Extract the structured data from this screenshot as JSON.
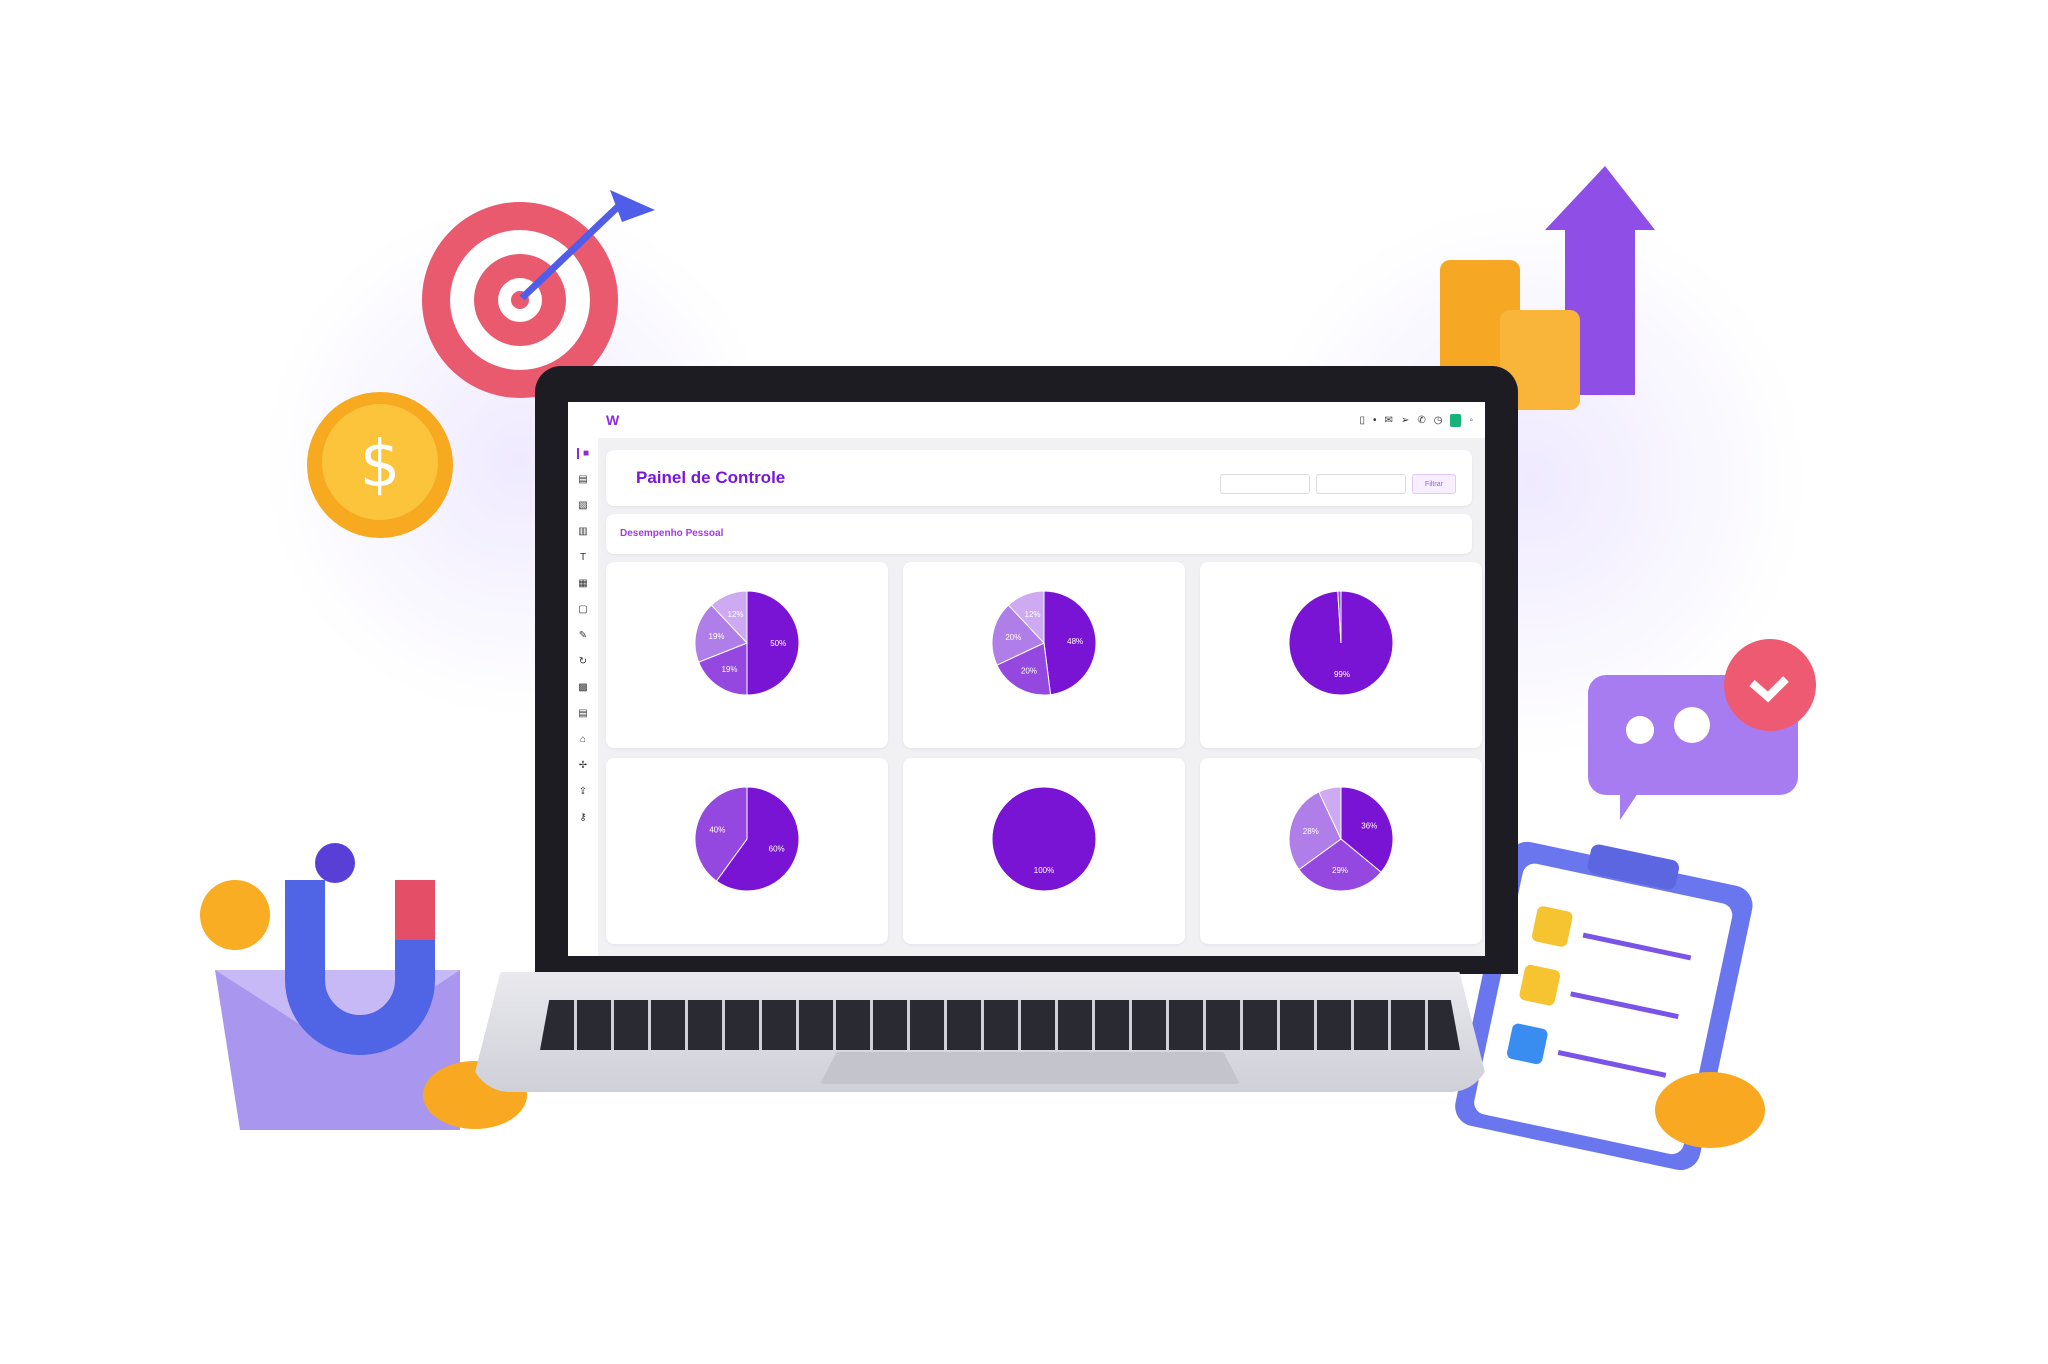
{
  "app": {
    "logo_text": "W",
    "title": "Painel de Controle",
    "subtitle": "Desempenho Pessoal",
    "filter_button": "Filtrar"
  },
  "topbar": {
    "icons": [
      "menu-icon",
      "bell-icon",
      "mail-icon",
      "send-icon",
      "phone-icon",
      "clock-icon",
      "status-icon",
      "user-icon"
    ]
  },
  "sidebar": {
    "icons": [
      "home-icon",
      "chart-icon",
      "image-icon",
      "book-icon",
      "text-icon",
      "document-icon",
      "tablet-icon",
      "pen-icon",
      "refresh-icon",
      "calendar-icon",
      "file-icon",
      "bank-icon",
      "star-icon",
      "upload-icon",
      "hat-icon",
      "key-icon",
      "link-icon"
    ]
  },
  "colors": {
    "accent": "#8a2be2",
    "pie": [
      "#7a14d4",
      "#9548e0",
      "#b07ee8",
      "#cdaaf2",
      "#e3d0f8"
    ]
  },
  "chart_data": [
    {
      "type": "pie",
      "values": [
        50,
        19,
        19,
        12
      ]
    },
    {
      "type": "pie",
      "values": [
        48,
        20,
        20,
        12
      ]
    },
    {
      "type": "pie",
      "values": [
        99,
        1
      ]
    },
    {
      "type": "pie",
      "values": [
        60,
        40
      ]
    },
    {
      "type": "pie",
      "values": [
        100
      ]
    },
    {
      "type": "pie",
      "values": [
        36,
        29,
        28,
        7
      ]
    }
  ]
}
